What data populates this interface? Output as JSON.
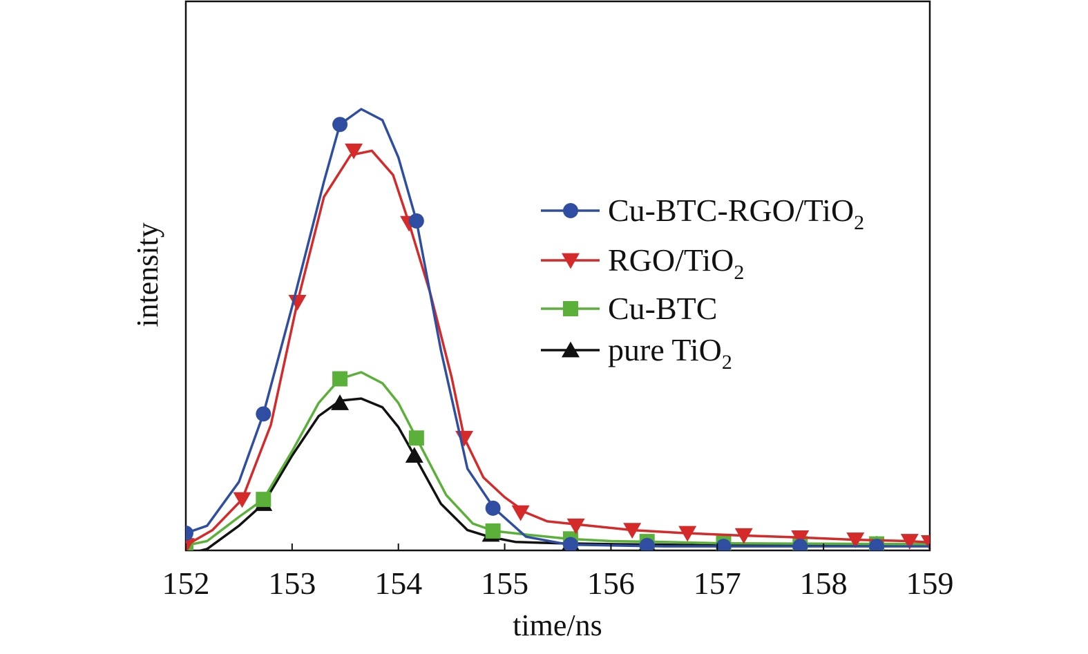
{
  "chart_data": {
    "type": "line",
    "title": "",
    "xlabel": "time/ns",
    "ylabel": "intensity",
    "xlim": [
      152,
      159
    ],
    "ylim": [
      0,
      100
    ],
    "x_ticks": [
      "152",
      "153",
      "154",
      "155",
      "156",
      "157",
      "158",
      "159"
    ],
    "y_ticks_shown": false,
    "grid": false,
    "legend_position": "right",
    "series": [
      {
        "name": "Cu-BTC-RGO/TiO",
        "name_subscript": "2",
        "color": "#2f4ea2",
        "marker": "circle",
        "x": [
          152.0,
          152.2,
          152.5,
          152.73,
          153.0,
          153.3,
          153.45,
          153.65,
          153.85,
          154.0,
          154.17,
          154.4,
          154.65,
          154.9,
          155.2,
          155.6,
          156.0,
          156.5,
          157.0,
          158.0,
          159.0
        ],
        "y": [
          3.3,
          5.0,
          15.0,
          30.5,
          55.0,
          83.5,
          96.5,
          100.0,
          97.5,
          89.0,
          74.5,
          45.0,
          18.0,
          9.0,
          2.5,
          0.7,
          0.5,
          0.3,
          0.3,
          0.3,
          0.3
        ],
        "marker_x": [
          152.0,
          152.73,
          153.45,
          154.17,
          154.89,
          155.62,
          156.34,
          157.06,
          157.78,
          158.5
        ],
        "marker_y": [
          3.3,
          30.5,
          96.5,
          74.5,
          9.0,
          0.7,
          0.5,
          0.3,
          0.3,
          0.3
        ]
      },
      {
        "name": "RGO/TiO",
        "name_subscript": "2",
        "color": "#d42a2a",
        "marker": "triangle-down",
        "x": [
          152.0,
          152.25,
          152.53,
          152.8,
          153.05,
          153.3,
          153.55,
          153.75,
          153.95,
          154.1,
          154.3,
          154.5,
          154.62,
          154.8,
          155.0,
          155.2,
          155.4,
          155.8,
          156.2,
          156.7,
          157.2,
          157.8,
          158.3,
          158.8,
          159.0
        ],
        "y": [
          0.5,
          4.0,
          11.0,
          28.0,
          56.0,
          80.0,
          89.5,
          90.5,
          85.0,
          74.0,
          58.0,
          39.0,
          25.0,
          16.0,
          11.5,
          8.0,
          6.0,
          5.0,
          4.0,
          3.3,
          2.8,
          2.3,
          1.8,
          1.5,
          1.2
        ],
        "marker_x": [
          152.0,
          152.53,
          153.05,
          153.58,
          154.1,
          154.62,
          155.15,
          155.67,
          156.2,
          156.72,
          157.25,
          157.78,
          158.3,
          158.81,
          159.0
        ],
        "marker_y": [
          0.5,
          11.0,
          56.0,
          90.5,
          74.0,
          25.0,
          8.0,
          5.0,
          4.0,
          3.3,
          2.8,
          2.3,
          1.8,
          1.5,
          1.2
        ],
        "legend_marker": "triangle-down"
      },
      {
        "name": "Cu-BTC",
        "marker": "square",
        "color": "#5ab038",
        "x": [
          152.0,
          152.2,
          152.5,
          152.73,
          153.0,
          153.25,
          153.45,
          153.65,
          153.85,
          154.0,
          154.17,
          154.45,
          154.7,
          154.9,
          155.2,
          155.6,
          156.0,
          156.5,
          157.0,
          158.0,
          159.0
        ],
        "y": [
          0.5,
          1.5,
          7.0,
          11.0,
          22.0,
          33.0,
          38.5,
          40.0,
          37.5,
          33.0,
          25.0,
          12.0,
          5.5,
          3.8,
          3.0,
          2.0,
          1.5,
          1.3,
          1.0,
          0.9,
          0.8
        ],
        "marker_x": [
          152.0,
          152.73,
          153.45,
          154.17,
          154.89,
          155.62,
          156.34,
          157.06,
          157.78,
          158.5
        ],
        "marker_y": [
          0.5,
          11.0,
          38.5,
          25.0,
          3.8,
          2.0,
          1.4,
          1.0,
          0.9,
          0.85
        ]
      },
      {
        "name": "pure TiO",
        "name_subscript": "2",
        "marker": "triangle-up",
        "color": "#111111",
        "x": [
          152.0,
          152.2,
          152.5,
          152.73,
          153.0,
          153.25,
          153.45,
          153.65,
          153.85,
          154.0,
          154.15,
          154.4,
          154.65,
          154.85,
          155.1,
          155.5,
          156.0,
          156.5,
          157.0,
          158.0,
          159.0
        ],
        "y": [
          -1.5,
          -0.3,
          5.0,
          10.0,
          21.0,
          30.0,
          33.5,
          34.0,
          32.0,
          27.5,
          21.0,
          10.0,
          4.0,
          2.5,
          1.3,
          1.0,
          0.8,
          0.7,
          0.5,
          0.6,
          0.5
        ],
        "marker_x": [
          152.73,
          153.45,
          154.15,
          154.87,
          155.62,
          156.34,
          157.06,
          157.78,
          158.5
        ],
        "marker_y": [
          10.0,
          33.0,
          21.0,
          3.0,
          1.0,
          0.8,
          0.6,
          0.5,
          0.8
        ]
      }
    ]
  }
}
